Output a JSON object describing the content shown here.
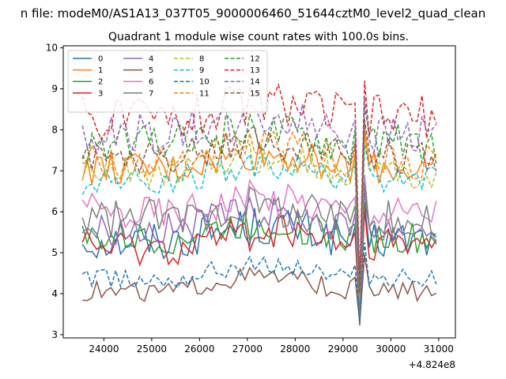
{
  "chart_data": {
    "type": "line",
    "suptitle": "n file: modeM0/AS1A13_037T05_9000006460_51644cztM0_level2_quad_clean",
    "title": "Quadrant 1 module wise count rates with 100.0s bins.",
    "xlabel": "",
    "ylabel": "",
    "x_offset_label": "+4.824e8",
    "xlim": [
      23150,
      31350
    ],
    "ylim": [
      2.92,
      10.05
    ],
    "xticks": [
      24000,
      25000,
      26000,
      27000,
      28000,
      29000,
      30000,
      31000
    ],
    "yticks": [
      3,
      4,
      5,
      6,
      7,
      8,
      9,
      10
    ],
    "x_start": 23550,
    "x_step": 100,
    "n_points": 75,
    "dip_x": 29350,
    "legend_position": "upper-left",
    "legend_columns": 4,
    "series": [
      {
        "name": "0",
        "color": "#1f77b4",
        "dash": "solid",
        "base": 5.3,
        "amp": 0.5,
        "drop": 3.22
      },
      {
        "name": "1",
        "color": "#ff7f0e",
        "dash": "solid",
        "base": 7.05,
        "amp": 0.4,
        "drop": 3.85
      },
      {
        "name": "2",
        "color": "#2ca02c",
        "dash": "solid",
        "base": 5.35,
        "amp": 0.4,
        "drop": 3.4
      },
      {
        "name": "3",
        "color": "#d62728",
        "dash": "solid",
        "base": 5.15,
        "amp": 0.45,
        "drop": 3.35
      },
      {
        "name": "4",
        "color": "#9467bd",
        "dash": "solid",
        "base": 5.6,
        "amp": 0.4,
        "drop": 3.45
      },
      {
        "name": "5",
        "color": "#8c564b",
        "dash": "solid",
        "base": 4.05,
        "amp": 0.25,
        "drop": 3.3
      },
      {
        "name": "6",
        "color": "#e377c2",
        "dash": "solid",
        "base": 6.0,
        "amp": 0.45,
        "drop": 3.6
      },
      {
        "name": "7",
        "color": "#7f7f7f",
        "dash": "solid",
        "base": 5.8,
        "amp": 0.5,
        "drop": 3.5
      },
      {
        "name": "8",
        "color": "#bcbd22",
        "dash": "dashed",
        "base": 6.95,
        "amp": 0.4,
        "drop": 3.95
      },
      {
        "name": "9",
        "color": "#17becf",
        "dash": "dashed",
        "base": 6.75,
        "amp": 0.35,
        "drop": 3.8
      },
      {
        "name": "10",
        "color": "#1f77b4",
        "dash": "dashed",
        "base": 4.35,
        "amp": 0.25,
        "drop": 3.35
      },
      {
        "name": "11",
        "color": "#ff7f0e",
        "dash": "dashed",
        "base": 7.2,
        "amp": 0.45,
        "drop": 3.9
      },
      {
        "name": "12",
        "color": "#2ca02c",
        "dash": "dashed",
        "base": 7.65,
        "amp": 0.5,
        "drop": 4.1
      },
      {
        "name": "13",
        "color": "#d62728",
        "dash": "dashed",
        "base": 8.3,
        "amp": 0.55,
        "drop": 4.3
      },
      {
        "name": "14",
        "color": "#9467bd",
        "dash": "dashed",
        "base": 7.9,
        "amp": 0.5,
        "drop": 4.15
      },
      {
        "name": "15",
        "color": "#8c564b",
        "dash": "dashed",
        "base": 7.35,
        "amp": 0.45,
        "drop": 4.0
      }
    ]
  }
}
